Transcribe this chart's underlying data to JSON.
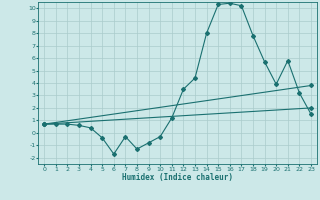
{
  "xlabel": "Humidex (Indice chaleur)",
  "background_color": "#cce8e8",
  "grid_color": "#aacccc",
  "line_color": "#1a7070",
  "xlim": [
    -0.5,
    23.5
  ],
  "ylim": [
    -2.5,
    10.5
  ],
  "xticks": [
    0,
    1,
    2,
    3,
    4,
    5,
    6,
    7,
    8,
    9,
    10,
    11,
    12,
    13,
    14,
    15,
    16,
    17,
    18,
    19,
    20,
    21,
    22,
    23
  ],
  "yticks": [
    -2,
    -1,
    0,
    1,
    2,
    3,
    4,
    5,
    6,
    7,
    8,
    9,
    10
  ],
  "series1_x": [
    0,
    1,
    2,
    3,
    4,
    5,
    6,
    7,
    8,
    9,
    10,
    11,
    12,
    13,
    14,
    15,
    16,
    17,
    18,
    19,
    20,
    21,
    22,
    23
  ],
  "series1_y": [
    0.7,
    0.7,
    0.7,
    0.6,
    0.4,
    -0.4,
    -1.7,
    -0.3,
    -1.3,
    -0.8,
    -0.3,
    1.2,
    3.5,
    4.4,
    8.0,
    10.3,
    10.4,
    10.2,
    7.8,
    5.7,
    3.9,
    5.8,
    3.2,
    1.5
  ],
  "series2_x": [
    0,
    23
  ],
  "series2_y": [
    0.7,
    2.0
  ],
  "series3_x": [
    0,
    23
  ],
  "series3_y": [
    0.7,
    3.8
  ],
  "marker": "D",
  "markersize": 2.0,
  "linewidth": 0.8
}
